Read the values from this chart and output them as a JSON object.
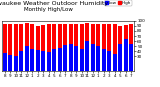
{
  "title": "Milwaukee Weather Outdoor Humidity",
  "subtitle": "Monthly High/Low",
  "high_values": [
    93,
    93,
    93,
    93,
    96,
    93,
    90,
    91,
    93,
    93,
    93,
    93,
    93,
    93,
    93,
    96,
    93,
    93,
    93,
    93,
    93,
    90,
    91,
    93
  ],
  "low_values": [
    36,
    32,
    30,
    40,
    50,
    44,
    43,
    40,
    38,
    44,
    47,
    52,
    55,
    50,
    45,
    60,
    55,
    50,
    45,
    40,
    35,
    55,
    65,
    55
  ],
  "labels": [
    "8",
    "9",
    "10",
    "11",
    "12",
    "1",
    "2",
    "3",
    "4",
    "5",
    "6",
    "7",
    "8",
    "9",
    "10",
    "11",
    "12",
    "1",
    "2",
    "3",
    "4",
    "5",
    "6",
    "7"
  ],
  "high_color": "#ff0000",
  "low_color": "#0000ff",
  "bg_color": "#ffffff",
  "ylim": [
    0,
    100
  ],
  "yticks": [
    30,
    40,
    50,
    60,
    70,
    80,
    90,
    100
  ],
  "legend_high": "High",
  "legend_low": "Low",
  "title_fontsize": 4.5,
  "tick_fontsize": 3.0
}
